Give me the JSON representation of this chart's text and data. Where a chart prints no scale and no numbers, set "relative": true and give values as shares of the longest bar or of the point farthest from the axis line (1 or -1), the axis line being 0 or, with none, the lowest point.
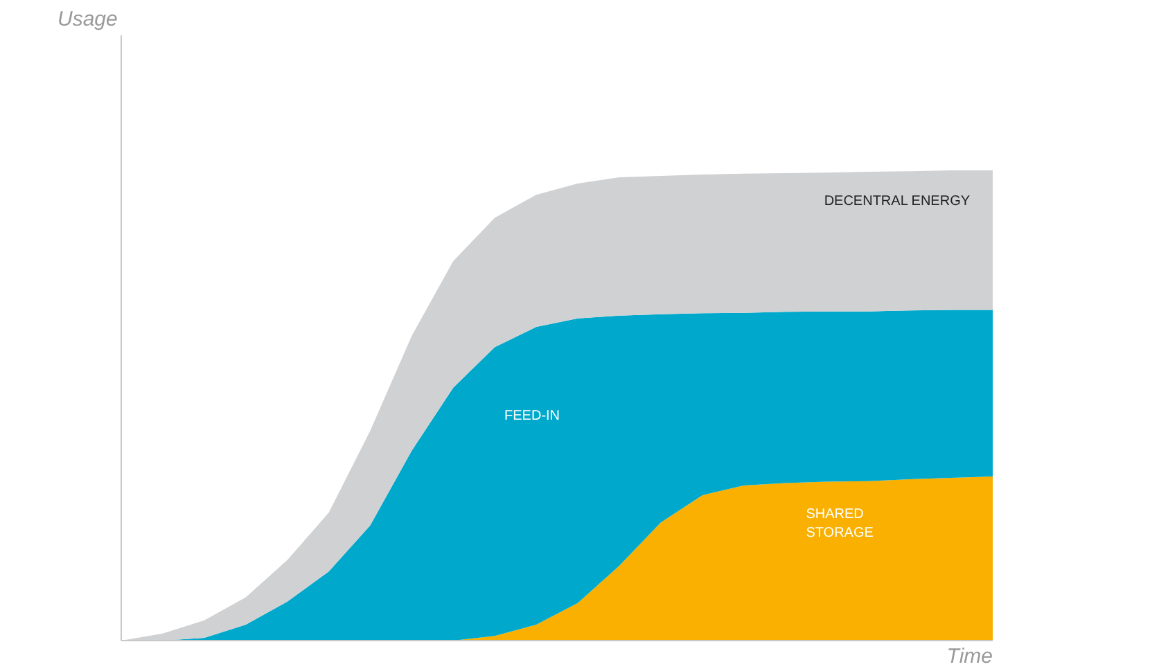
{
  "chart_data": {
    "type": "area",
    "stacked": true,
    "relative": true,
    "xlabel": "Time",
    "annotations": [
      "Usage"
    ],
    "categories": [
      null,
      null,
      null,
      null,
      null,
      null,
      null,
      null,
      null,
      null,
      null,
      null,
      null,
      null,
      null,
      null,
      null,
      null,
      null,
      null,
      null,
      null
    ],
    "series": [
      {
        "name": "SHARED\nSTORAGE",
        "color": "#f9b000",
        "values": [
          0,
          0,
          0,
          0,
          0,
          0,
          0,
          0,
          0,
          0.01,
          0.034,
          0.08,
          0.159,
          0.251,
          0.309,
          0.33,
          0.335,
          0.338,
          0.339,
          0.343,
          0.346,
          0.349
        ]
      },
      {
        "name": "FEED-IN",
        "color": "#00a9cc",
        "values": [
          0,
          0,
          0.006,
          0.034,
          0.083,
          0.147,
          0.245,
          0.404,
          0.538,
          0.614,
          0.633,
          0.605,
          0.532,
          0.443,
          0.387,
          0.367,
          0.364,
          0.362,
          0.361,
          0.359,
          0.357,
          0.354
        ]
      },
      {
        "name": "DECENTRAL ENERGY",
        "color": "#d0d1d3",
        "values": [
          0,
          0.015,
          0.037,
          0.058,
          0.088,
          0.125,
          0.201,
          0.244,
          0.269,
          0.275,
          0.281,
          0.287,
          0.294,
          0.294,
          0.295,
          0.296,
          0.295,
          0.295,
          0.297,
          0.296,
          0.297,
          0.297
        ]
      }
    ]
  }
}
